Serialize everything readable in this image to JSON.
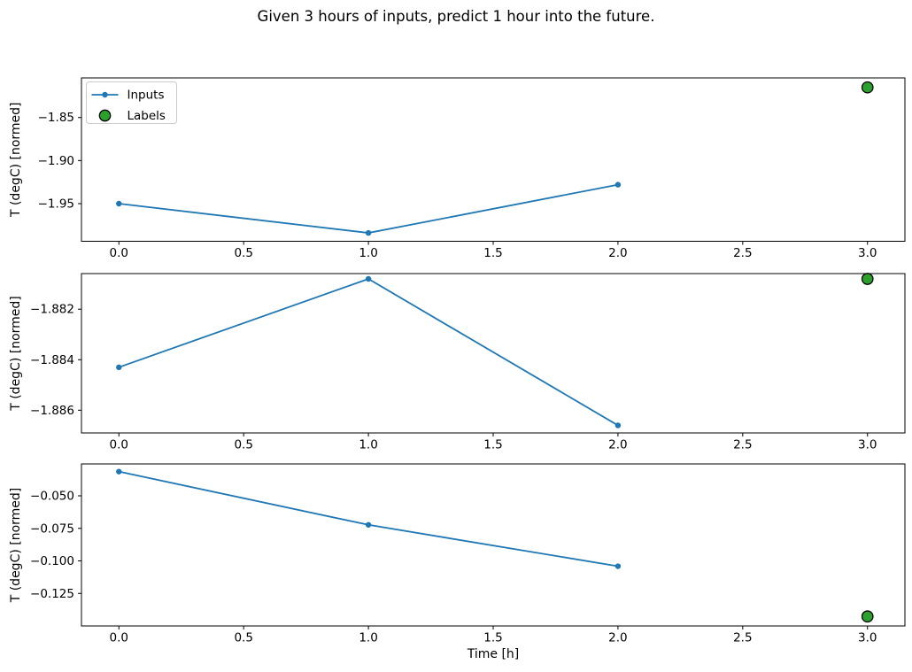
{
  "figure": {
    "title": "Given 3 hours of inputs, predict 1 hour into the future.",
    "xlabel": "Time [h]",
    "background": "#ffffff"
  },
  "legend": {
    "location": "upper left",
    "items": [
      {
        "label": "Inputs",
        "marker": "line-dot",
        "color": "#1f77b4"
      },
      {
        "label": "Labels",
        "marker": "circle",
        "fill": "#2ca02c",
        "edge": "#000000"
      }
    ]
  },
  "colors": {
    "inputs_line": "#1f77b4",
    "labels_fill": "#2ca02c",
    "labels_edge": "#000000",
    "axis": "#000000",
    "legend_border": "#cccccc"
  },
  "chart_data": [
    {
      "type": "line",
      "ylabel": "T (degC) [normed]",
      "x": [
        0,
        1,
        2
      ],
      "series": [
        {
          "name": "Inputs",
          "values": [
            -1.95,
            -1.984,
            -1.928
          ]
        }
      ],
      "label_point": {
        "name": "Labels",
        "x": 3,
        "y": -1.815
      },
      "xlim": [
        -0.15,
        3.15
      ],
      "ylim": [
        -1.9937,
        -1.804
      ],
      "xticks": [
        0,
        0.5,
        1,
        1.5,
        2,
        2.5,
        3
      ],
      "xtick_labels": [
        "0.0",
        "0.5",
        "1.0",
        "1.5",
        "2.0",
        "2.5",
        "3.0"
      ],
      "yticks": [
        -1.85,
        -1.9,
        -1.95
      ],
      "ytick_labels": [
        "−1.85",
        "−1.90",
        "−1.95"
      ],
      "grid": false,
      "show_legend": true,
      "show_xlabel": false
    },
    {
      "type": "line",
      "ylabel": "T (degC) [normed]",
      "x": [
        0,
        1,
        2
      ],
      "series": [
        {
          "name": "Inputs",
          "values": [
            -1.8843,
            -1.8808,
            -1.8866
          ]
        }
      ],
      "label_point": {
        "name": "Labels",
        "x": 3,
        "y": -1.8808
      },
      "xlim": [
        -0.15,
        3.15
      ],
      "ylim": [
        -1.8869,
        -1.88059
      ],
      "xticks": [
        0,
        0.5,
        1,
        1.5,
        2,
        2.5,
        3
      ],
      "xtick_labels": [
        "0.0",
        "0.5",
        "1.0",
        "1.5",
        "2.0",
        "2.5",
        "3.0"
      ],
      "yticks": [
        -1.882,
        -1.884,
        -1.886
      ],
      "ytick_labels": [
        "−1.882",
        "−1.884",
        "−1.886"
      ],
      "grid": false,
      "show_legend": false,
      "show_xlabel": false
    },
    {
      "type": "line",
      "ylabel": "T (degC) [normed]",
      "x": [
        0,
        1,
        2
      ],
      "series": [
        {
          "name": "Inputs",
          "values": [
            -0.0314,
            -0.0723,
            -0.1041
          ]
        }
      ],
      "label_point": {
        "name": "Labels",
        "x": 3,
        "y": -0.1427
      },
      "xlim": [
        -0.15,
        3.15
      ],
      "ylim": [
        -0.15,
        -0.0255
      ],
      "xticks": [
        0,
        0.5,
        1,
        1.5,
        2,
        2.5,
        3
      ],
      "xtick_labels": [
        "0.0",
        "0.5",
        "1.0",
        "1.5",
        "2.0",
        "2.5",
        "3.0"
      ],
      "yticks": [
        -0.05,
        -0.075,
        -0.1,
        -0.125
      ],
      "ytick_labels": [
        "−0.050",
        "−0.075",
        "−0.100",
        "−0.125"
      ],
      "grid": false,
      "show_legend": false,
      "show_xlabel": true
    }
  ]
}
